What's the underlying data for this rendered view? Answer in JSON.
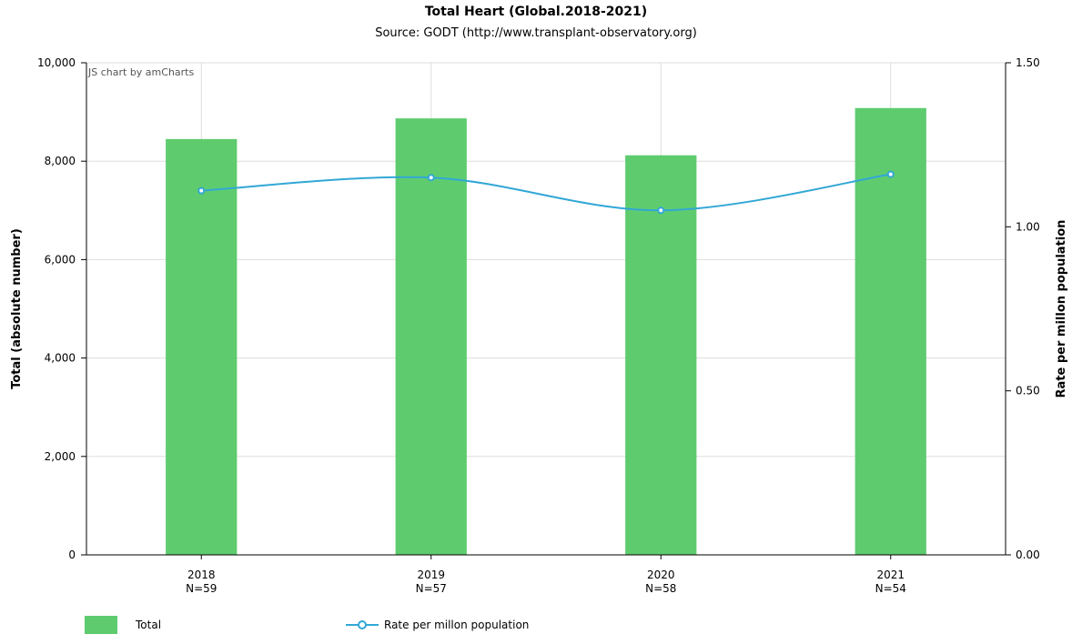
{
  "chart": {
    "title": "Total Heart (Global.2018-2021)",
    "subtitle": "Source: GODT (http://www.transplant-observatory.org)",
    "credit": "JS chart by amCharts"
  },
  "legend": {
    "total": "Total",
    "rate": "Rate per millon population"
  },
  "chart_data": {
    "type": "bar",
    "categories": [
      "2018",
      "2019",
      "2020",
      "2021"
    ],
    "category_notes": [
      "N=59",
      "N=57",
      "N=58",
      "N=54"
    ],
    "series": [
      {
        "name": "Total",
        "type": "bar",
        "axis": "left",
        "color": "#5ecc6e",
        "values": [
          8450,
          8870,
          8120,
          9080
        ]
      },
      {
        "name": "Rate per millon population",
        "type": "line",
        "axis": "right",
        "color": "#32a7d6",
        "values": [
          1.11,
          1.15,
          1.05,
          1.16
        ]
      }
    ],
    "ylabel": "Total (absolute number)",
    "ylabel_right": "Rate per millon population",
    "ylim": [
      0,
      10000
    ],
    "ylim_right": [
      0,
      1.5
    ],
    "y_ticks": [
      "0",
      "2,000",
      "4,000",
      "6,000",
      "8,000",
      "10,000"
    ],
    "y_ticks_right": [
      "0.00",
      "0.50",
      "1.00",
      "1.50"
    ],
    "grid": true,
    "legend_position": "bottom-left"
  }
}
